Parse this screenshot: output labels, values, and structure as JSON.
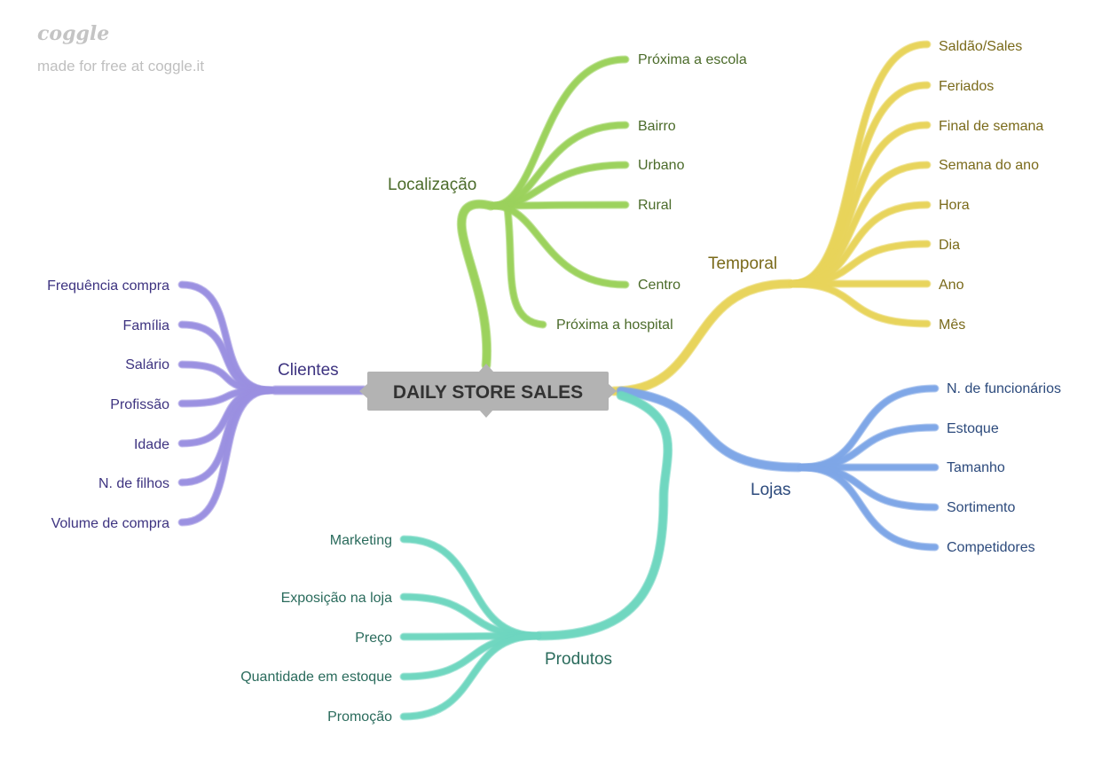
{
  "watermark": {
    "logo": "coggle",
    "tagline": "made for free at coggle.it"
  },
  "root": {
    "label": "DAILY STORE SALES",
    "fill": "#b3b3b3"
  },
  "branches": {
    "localizacao": {
      "label": "Localização",
      "color": "#9bd15c",
      "text_color": "#4b6b2a",
      "leaf_text_color": "#4b6b2a",
      "items": [
        "Próxima a escola",
        "Bairro",
        "Urbano",
        "Rural",
        "Centro",
        "Próxima a hospital"
      ]
    },
    "temporal": {
      "label": "Temporal",
      "color": "#e8d35a",
      "text_color": "#7a6a1a",
      "leaf_text_color": "#7a6a1a",
      "items": [
        "Saldão/Sales",
        "Feriados",
        "Final de semana",
        "Semana do ano",
        "Hora",
        "Dia",
        "Ano",
        "Mês"
      ]
    },
    "lojas": {
      "label": "Lojas",
      "color": "#7ea6e6",
      "text_color": "#2c4a7c",
      "leaf_text_color": "#2c4a7c",
      "items": [
        "N. de funcionários",
        "Estoque",
        "Tamanho",
        "Sortimento",
        "Competidores"
      ]
    },
    "produtos": {
      "label": "Produtos",
      "color": "#6ed6c0",
      "text_color": "#2a6b5c",
      "leaf_text_color": "#2a6b5c",
      "items": [
        "Marketing",
        "Exposição na loja",
        "Preço",
        "Quantidade em estoque",
        "Promoção"
      ]
    },
    "clientes": {
      "label": "Clientes",
      "color": "#9a8fe0",
      "text_color": "#3d3380",
      "leaf_text_color": "#3d3380",
      "items": [
        "Frequência compra",
        "Família",
        "Salário",
        "Profissão",
        "Idade",
        "N. de filhos",
        "Volume de compra"
      ]
    }
  }
}
